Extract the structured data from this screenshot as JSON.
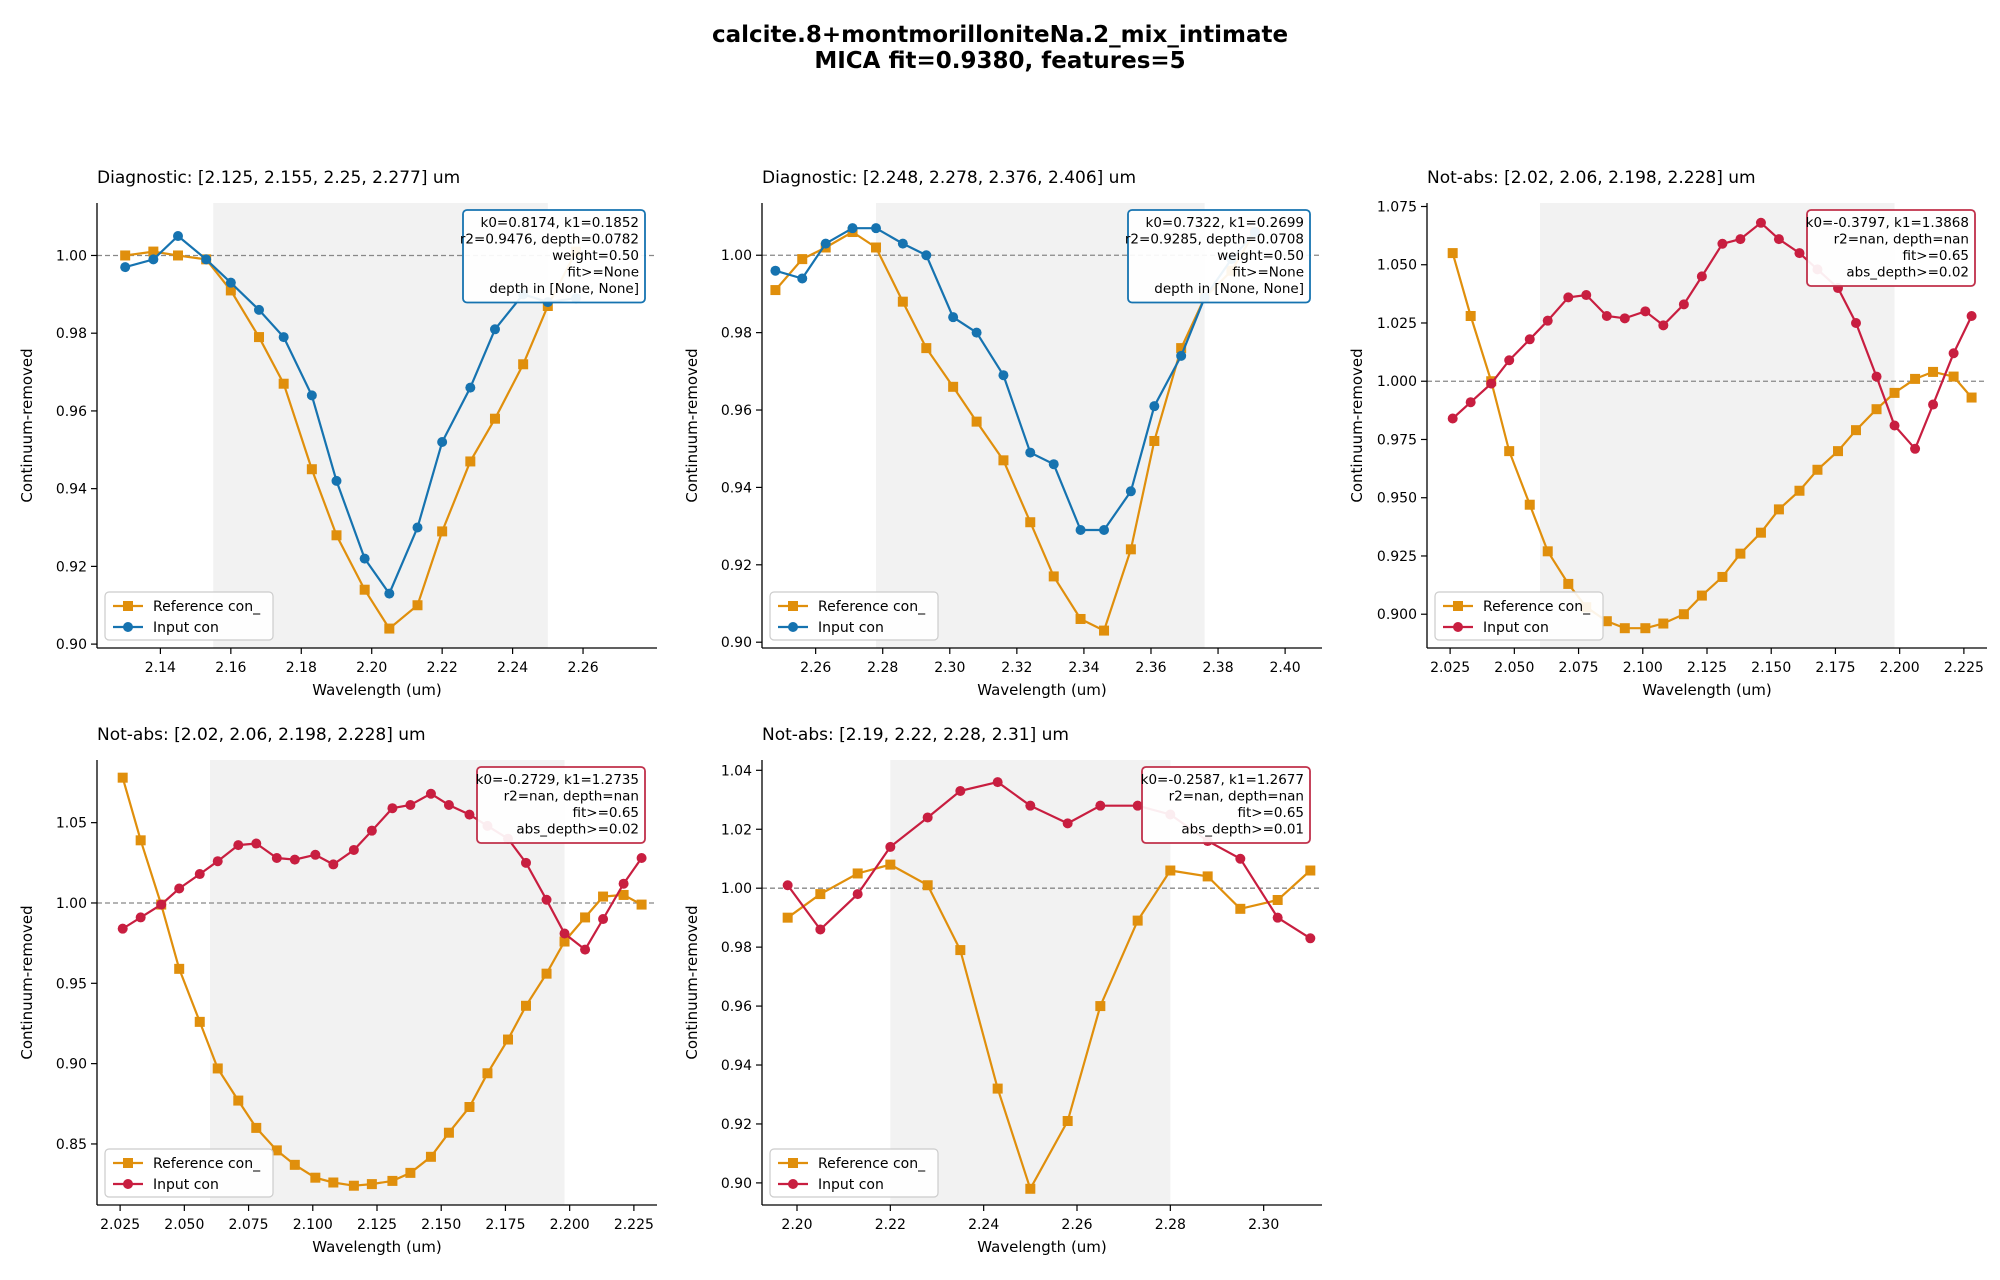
{
  "figure": {
    "title_line1": "calcite.8+montmorilloniteNa.2_mix_intimate",
    "title_line2": "MICA fit=0.9380, features=5"
  },
  "colors": {
    "reference": "#e08f0c",
    "input_diag": "#1673b0",
    "input_notabs": "#c81e40",
    "box_diag": "#1673b0",
    "box_notabs": "#c0304a",
    "shade": "#f2f2f2"
  },
  "chart_data": [
    {
      "type": "line",
      "title": "Diagnostic: [2.125, 2.155, 2.25, 2.277] um",
      "xlabel": "Wavelength (um)",
      "ylabel": "Continuum-removed",
      "xlim": [
        2.122,
        2.281
      ],
      "ylim": [
        0.899,
        1.0135
      ],
      "xticks": [
        2.14,
        2.16,
        2.18,
        2.2,
        2.22,
        2.24,
        2.26
      ],
      "xtick_labels": [
        "2.14",
        "2.16",
        "2.18",
        "2.20",
        "2.22",
        "2.24",
        "2.26"
      ],
      "yticks": [
        0.9,
        0.92,
        0.94,
        0.96,
        0.98,
        1.0
      ],
      "ytick_labels": [
        "0.90",
        "0.92",
        "0.94",
        "0.96",
        "0.98",
        "1.00"
      ],
      "shade": [
        2.155,
        2.25
      ],
      "refline": 1.0,
      "variant": "diag",
      "legend": [
        "Reference con_",
        "Input con"
      ],
      "annotation": [
        "k0=0.8174, k1=0.1852",
        "r2=0.9476, depth=0.0782",
        "weight=0.50",
        "fit>=None",
        "depth in [None, None]"
      ],
      "series": [
        {
          "name": "Reference con_",
          "marker": "square",
          "x": [
            2.13,
            2.138,
            2.145,
            2.153,
            2.16,
            2.168,
            2.175,
            2.183,
            2.19,
            2.198,
            2.205,
            2.213,
            2.22,
            2.228,
            2.235,
            2.243,
            2.25,
            2.258
          ],
          "y": [
            1.0,
            1.001,
            1.0,
            0.999,
            0.991,
            0.979,
            0.967,
            0.945,
            0.928,
            0.914,
            0.904,
            0.91,
            0.929,
            0.947,
            0.958,
            0.972,
            0.987,
            1.001
          ]
        },
        {
          "name": "Input con",
          "marker": "circle",
          "x": [
            2.13,
            2.138,
            2.145,
            2.153,
            2.16,
            2.168,
            2.175,
            2.183,
            2.19,
            2.198,
            2.205,
            2.213,
            2.22,
            2.228,
            2.235,
            2.243,
            2.25,
            2.258
          ],
          "y": [
            0.997,
            0.999,
            1.005,
            0.999,
            0.993,
            0.986,
            0.979,
            0.964,
            0.942,
            0.922,
            0.913,
            0.93,
            0.952,
            0.966,
            0.981,
            0.99,
            0.988,
            0.989
          ]
        }
      ]
    },
    {
      "type": "line",
      "title": "Diagnostic: [2.248, 2.278, 2.376, 2.406] um",
      "xlabel": "Wavelength (um)",
      "ylabel": "Continuum-removed",
      "xlim": [
        2.244,
        2.411
      ],
      "ylim": [
        0.8985,
        1.0135
      ],
      "xticks": [
        2.26,
        2.28,
        2.3,
        2.32,
        2.34,
        2.36,
        2.38,
        2.4
      ],
      "xtick_labels": [
        "2.26",
        "2.28",
        "2.30",
        "2.32",
        "2.34",
        "2.36",
        "2.38",
        "2.40"
      ],
      "yticks": [
        0.9,
        0.92,
        0.94,
        0.96,
        0.98,
        1.0
      ],
      "ytick_labels": [
        "0.90",
        "0.92",
        "0.94",
        "0.96",
        "0.98",
        "1.00"
      ],
      "shade": [
        2.278,
        2.376
      ],
      "refline": 1.0,
      "variant": "diag",
      "legend": [
        "Reference con_",
        "Input con"
      ],
      "annotation": [
        "k0=0.7322, k1=0.2699",
        "r2=0.9285, depth=0.0708",
        "weight=0.50",
        "fit>=None",
        "depth in [None, None]"
      ],
      "series": [
        {
          "name": "Reference con_",
          "marker": "square",
          "x": [
            2.248,
            2.256,
            2.263,
            2.271,
            2.278,
            2.286,
            2.293,
            2.301,
            2.308,
            2.316,
            2.324,
            2.331,
            2.339,
            2.346,
            2.354,
            2.361,
            2.369,
            2.376,
            2.384,
            2.391
          ],
          "y": [
            0.991,
            0.999,
            1.002,
            1.006,
            1.002,
            0.988,
            0.976,
            0.966,
            0.957,
            0.947,
            0.931,
            0.917,
            0.906,
            0.903,
            0.924,
            0.952,
            0.976,
            0.989,
            0.996,
            1.006
          ]
        },
        {
          "name": "Input con",
          "marker": "circle",
          "x": [
            2.248,
            2.256,
            2.263,
            2.271,
            2.278,
            2.286,
            2.293,
            2.301,
            2.308,
            2.316,
            2.324,
            2.331,
            2.339,
            2.346,
            2.354,
            2.361,
            2.369,
            2.376,
            2.384,
            2.391
          ],
          "y": [
            0.996,
            0.994,
            1.003,
            1.007,
            1.007,
            1.003,
            1.0,
            0.984,
            0.98,
            0.969,
            0.949,
            0.946,
            0.929,
            0.929,
            0.939,
            0.961,
            0.974,
            0.989,
            0.999,
            1.006
          ]
        }
      ]
    },
    {
      "type": "line",
      "title": "Not-abs: [2.02, 2.06, 2.198, 2.228] um",
      "xlabel": "Wavelength (um)",
      "ylabel": "Continuum-removed",
      "xlim": [
        2.016,
        2.234
      ],
      "ylim": [
        0.8855,
        1.0765
      ],
      "xticks": [
        2.025,
        2.05,
        2.075,
        2.1,
        2.125,
        2.15,
        2.175,
        2.2,
        2.225
      ],
      "xtick_labels": [
        "2.025",
        "2.050",
        "2.075",
        "2.100",
        "2.125",
        "2.150",
        "2.175",
        "2.200",
        "2.225"
      ],
      "yticks": [
        0.9,
        0.925,
        0.95,
        0.975,
        1.0,
        1.025,
        1.05,
        1.075
      ],
      "ytick_labels": [
        "0.900",
        "0.925",
        "0.950",
        "0.975",
        "1.000",
        "1.025",
        "1.050",
        "1.075"
      ],
      "shade": [
        2.06,
        2.198
      ],
      "refline": 1.0,
      "variant": "notabs",
      "legend": [
        "Reference con_",
        "Input con"
      ],
      "annotation": [
        "k0=-0.3797, k1=1.3868",
        "r2=nan, depth=nan",
        "fit>=0.65",
        "abs_depth>=0.02"
      ],
      "series": [
        {
          "name": "Reference con_",
          "marker": "square",
          "x": [
            2.026,
            2.033,
            2.041,
            2.048,
            2.056,
            2.063,
            2.071,
            2.078,
            2.086,
            2.093,
            2.101,
            2.108,
            2.116,
            2.123,
            2.131,
            2.138,
            2.146,
            2.153,
            2.161,
            2.168,
            2.176,
            2.183,
            2.191,
            2.198,
            2.206,
            2.213,
            2.221,
            2.228
          ],
          "y": [
            1.055,
            1.028,
            1.0,
            0.97,
            0.947,
            0.927,
            0.913,
            0.903,
            0.897,
            0.894,
            0.894,
            0.896,
            0.9,
            0.908,
            0.916,
            0.926,
            0.935,
            0.945,
            0.953,
            0.962,
            0.97,
            0.979,
            0.988,
            0.995,
            1.001,
            1.004,
            1.002,
            0.993
          ]
        },
        {
          "name": "Input con",
          "marker": "circle",
          "x": [
            2.026,
            2.033,
            2.041,
            2.048,
            2.056,
            2.063,
            2.071,
            2.078,
            2.086,
            2.093,
            2.101,
            2.108,
            2.116,
            2.123,
            2.131,
            2.138,
            2.146,
            2.153,
            2.161,
            2.168,
            2.176,
            2.183,
            2.191,
            2.198,
            2.206,
            2.213,
            2.221,
            2.228
          ],
          "y": [
            0.984,
            0.991,
            0.999,
            1.009,
            1.018,
            1.026,
            1.036,
            1.037,
            1.028,
            1.027,
            1.03,
            1.024,
            1.033,
            1.045,
            1.059,
            1.061,
            1.068,
            1.061,
            1.055,
            1.048,
            1.04,
            1.025,
            1.002,
            0.981,
            0.971,
            0.99,
            1.012,
            1.028
          ]
        }
      ]
    },
    {
      "type": "line",
      "title": "Not-abs: [2.02, 2.06, 2.198, 2.228] um",
      "xlabel": "Wavelength (um)",
      "ylabel": "Continuum-removed",
      "xlim": [
        2.016,
        2.234
      ],
      "ylim": [
        0.812,
        1.089
      ],
      "xticks": [
        2.025,
        2.05,
        2.075,
        2.1,
        2.125,
        2.15,
        2.175,
        2.2,
        2.225
      ],
      "xtick_labels": [
        "2.025",
        "2.050",
        "2.075",
        "2.100",
        "2.125",
        "2.150",
        "2.175",
        "2.200",
        "2.225"
      ],
      "yticks": [
        0.85,
        0.9,
        0.95,
        1.0,
        1.05
      ],
      "ytick_labels": [
        "0.85",
        "0.90",
        "0.95",
        "1.00",
        "1.05"
      ],
      "shade": [
        2.06,
        2.198
      ],
      "refline": 1.0,
      "variant": "notabs",
      "legend": [
        "Reference con_",
        "Input con"
      ],
      "annotation": [
        "k0=-0.2729, k1=1.2735",
        "r2=nan, depth=nan",
        "fit>=0.65",
        "abs_depth>=0.02"
      ],
      "series": [
        {
          "name": "Reference con_",
          "marker": "square",
          "x": [
            2.026,
            2.033,
            2.041,
            2.048,
            2.056,
            2.063,
            2.071,
            2.078,
            2.086,
            2.093,
            2.101,
            2.108,
            2.116,
            2.123,
            2.131,
            2.138,
            2.146,
            2.153,
            2.161,
            2.168,
            2.176,
            2.183,
            2.191,
            2.198,
            2.206,
            2.213,
            2.221,
            2.228
          ],
          "y": [
            1.078,
            1.039,
            0.999,
            0.959,
            0.926,
            0.897,
            0.877,
            0.86,
            0.846,
            0.837,
            0.829,
            0.826,
            0.824,
            0.825,
            0.827,
            0.832,
            0.842,
            0.857,
            0.873,
            0.894,
            0.915,
            0.936,
            0.956,
            0.976,
            0.991,
            1.004,
            1.005,
            0.999
          ]
        },
        {
          "name": "Input con",
          "marker": "circle",
          "x": [
            2.026,
            2.033,
            2.041,
            2.048,
            2.056,
            2.063,
            2.071,
            2.078,
            2.086,
            2.093,
            2.101,
            2.108,
            2.116,
            2.123,
            2.131,
            2.138,
            2.146,
            2.153,
            2.161,
            2.168,
            2.176,
            2.183,
            2.191,
            2.198,
            2.206,
            2.213,
            2.221,
            2.228
          ],
          "y": [
            0.984,
            0.991,
            0.999,
            1.009,
            1.018,
            1.026,
            1.036,
            1.037,
            1.028,
            1.027,
            1.03,
            1.024,
            1.033,
            1.045,
            1.059,
            1.061,
            1.068,
            1.061,
            1.055,
            1.048,
            1.04,
            1.025,
            1.002,
            0.981,
            0.971,
            0.99,
            1.012,
            1.028
          ]
        }
      ]
    },
    {
      "type": "line",
      "title": "Not-abs: [2.19, 2.22, 2.28, 2.31] um",
      "xlabel": "Wavelength (um)",
      "ylabel": "Continuum-removed",
      "xlim": [
        2.1925,
        2.3125
      ],
      "ylim": [
        0.8925,
        1.0435
      ],
      "xticks": [
        2.2,
        2.22,
        2.24,
        2.26,
        2.28,
        2.3
      ],
      "xtick_labels": [
        "2.20",
        "2.22",
        "2.24",
        "2.26",
        "2.28",
        "2.30"
      ],
      "yticks": [
        0.9,
        0.92,
        0.94,
        0.96,
        0.98,
        1.0,
        1.02,
        1.04
      ],
      "ytick_labels": [
        "0.90",
        "0.92",
        "0.94",
        "0.96",
        "0.98",
        "1.00",
        "1.02",
        "1.04"
      ],
      "shade": [
        2.22,
        2.28
      ],
      "refline": 1.0,
      "variant": "notabs",
      "legend": [
        "Reference con_",
        "Input con"
      ],
      "annotation": [
        "k0=-0.2587, k1=1.2677",
        "r2=nan, depth=nan",
        "fit>=0.65",
        "abs_depth>=0.01"
      ],
      "series": [
        {
          "name": "Reference con_",
          "marker": "square",
          "x": [
            2.198,
            2.205,
            2.213,
            2.22,
            2.228,
            2.235,
            2.243,
            2.25,
            2.258,
            2.265,
            2.273,
            2.28,
            2.288,
            2.295,
            2.303,
            2.31
          ],
          "y": [
            0.99,
            0.998,
            1.005,
            1.008,
            1.001,
            0.979,
            0.932,
            0.898,
            0.921,
            0.96,
            0.989,
            1.006,
            1.004,
            0.993,
            0.996,
            1.006
          ]
        },
        {
          "name": "Input con",
          "marker": "circle",
          "x": [
            2.198,
            2.205,
            2.213,
            2.22,
            2.228,
            2.235,
            2.243,
            2.25,
            2.258,
            2.265,
            2.273,
            2.28,
            2.288,
            2.295,
            2.303,
            2.31
          ],
          "y": [
            1.001,
            0.986,
            0.998,
            1.014,
            1.024,
            1.033,
            1.036,
            1.028,
            1.022,
            1.028,
            1.028,
            1.025,
            1.016,
            1.01,
            0.99,
            0.983
          ]
        }
      ]
    }
  ]
}
